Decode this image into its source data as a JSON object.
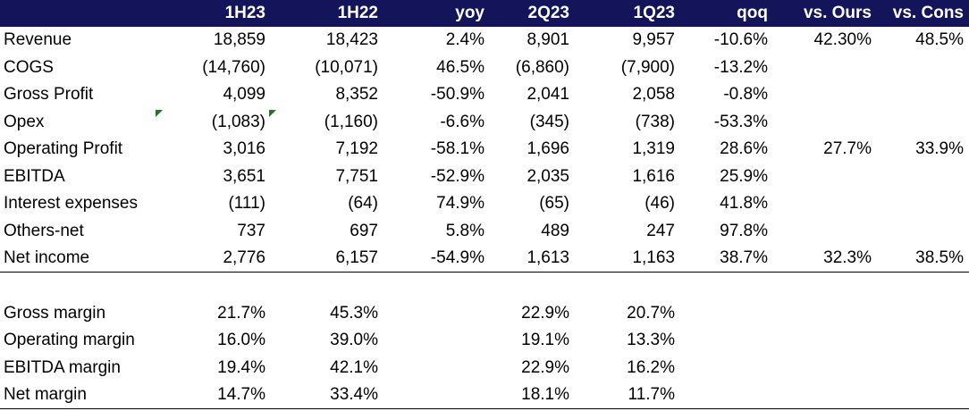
{
  "columns": [
    "",
    "1H23",
    "1H22",
    "yoy",
    "2Q23",
    "1Q23",
    "qoq",
    "vs. Ours",
    "vs. Cons"
  ],
  "rows": [
    {
      "label": "Revenue",
      "values": [
        "18,859",
        "18,423",
        "2.4%",
        "8,901",
        "9,957",
        "-10.6%",
        "42.30%",
        "48.5%"
      ]
    },
    {
      "label": "COGS",
      "values": [
        "(14,760)",
        "(10,071)",
        "46.5%",
        "(6,860)",
        "(7,900)",
        "-13.2%",
        "",
        ""
      ]
    },
    {
      "label": "Gross Profit",
      "values": [
        "4,099",
        "8,352",
        "-50.9%",
        "2,041",
        "2,058",
        "-0.8%",
        "",
        ""
      ]
    },
    {
      "label": "Opex",
      "values": [
        "(1,083)",
        "(1,160)",
        "-6.6%",
        "(345)",
        "(738)",
        "-53.3%",
        "",
        ""
      ]
    },
    {
      "label": "Operating Profit",
      "values": [
        "3,016",
        "7,192",
        "-58.1%",
        "1,696",
        "1,319",
        "28.6%",
        "27.7%",
        "33.9%"
      ]
    },
    {
      "label": "EBITDA",
      "values": [
        "3,651",
        "7,751",
        "-52.9%",
        "2,035",
        "1,616",
        "25.9%",
        "",
        ""
      ]
    },
    {
      "label": "Interest expenses",
      "values": [
        "(111)",
        "(64)",
        "74.9%",
        "(65)",
        "(46)",
        "41.8%",
        "",
        ""
      ]
    },
    {
      "label": "Others-net",
      "values": [
        "737",
        "697",
        "5.8%",
        "489",
        "247",
        "97.8%",
        "",
        ""
      ]
    },
    {
      "label": "Net income",
      "values": [
        "2,776",
        "6,157",
        "-54.9%",
        "1,613",
        "1,163",
        "38.7%",
        "32.3%",
        "38.5%"
      ]
    }
  ],
  "margins": [
    {
      "label": "Gross margin",
      "values": [
        "21.7%",
        "45.3%",
        "",
        "22.9%",
        "20.7%",
        "",
        "",
        ""
      ]
    },
    {
      "label": "Operating margin",
      "values": [
        "16.0%",
        "39.0%",
        "",
        "19.1%",
        "13.3%",
        "",
        "",
        ""
      ]
    },
    {
      "label": "EBITDA margin",
      "values": [
        "19.4%",
        "42.1%",
        "",
        "22.9%",
        "16.2%",
        "",
        "",
        ""
      ]
    },
    {
      "label": "Net margin",
      "values": [
        "14.7%",
        "33.4%",
        "",
        "18.1%",
        "11.7%",
        "",
        "",
        ""
      ]
    }
  ],
  "colors": {
    "header_bg": "#14145a",
    "header_text": "#ffffff",
    "flag": "#1f7a1f"
  },
  "icons": [
    "error-flag-icon"
  ]
}
